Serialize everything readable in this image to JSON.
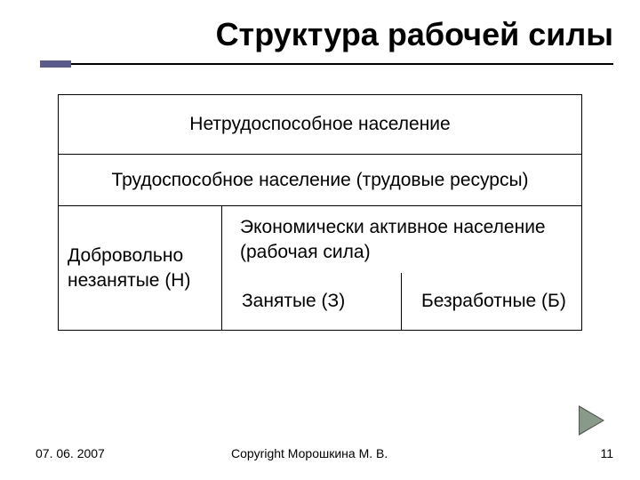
{
  "title": "Структура рабочей силы",
  "diagram": {
    "row1_label": "Нетрудоспособное население",
    "row2_label": "Трудоспособное население (трудовые ресурсы)",
    "voluntarily_unemployed": "Добровольно незанятые (Н)",
    "active_population": "Экономически активное население (рабочая сила)",
    "employed": "Занятые (З)",
    "unemployed": "Безработные (Б)"
  },
  "footer": {
    "date": "07. 06. 2007",
    "copyright": "Copyright Морошкина М. В.",
    "page": "11"
  },
  "style": {
    "title_fontsize": 36,
    "body_fontsize": 21,
    "footer_fontsize": 14,
    "accent_color": "#5b5b8b",
    "border_color": "#000000",
    "background": "#ffffff",
    "arrow_fill": "#8a9a8a",
    "arrow_border": "#555555",
    "diagram_width": 590,
    "row1_height": 68,
    "row2_height": 58,
    "row3_height": 140,
    "left_col_width": 185
  }
}
